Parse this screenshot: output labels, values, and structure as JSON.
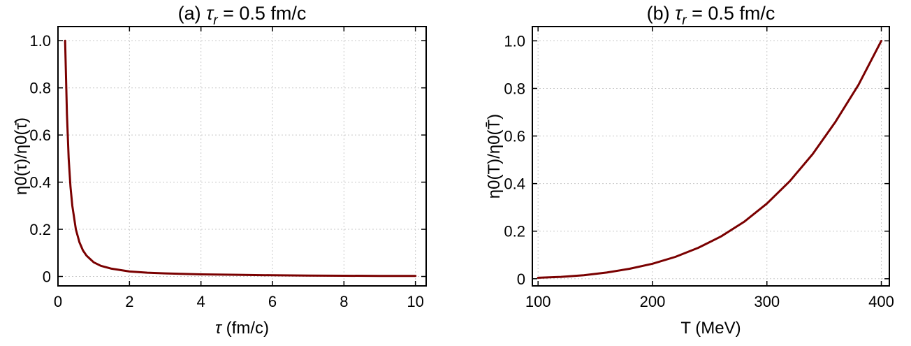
{
  "chart_data": [
    {
      "panel_id": "a",
      "type": "line",
      "title_prefix": "(a) ",
      "title_symbol": "τ",
      "title_subscript": "r",
      "title_suffix": " = 0.5 fm/c",
      "xlabel_symbol": "τ",
      "xlabel_suffix": " (fm/c)",
      "ylabel": "η0(τ)/η0(τ̄)",
      "xlim": [
        0,
        10.3
      ],
      "ylim": [
        -0.04,
        1.06
      ],
      "xticks": [
        0,
        2,
        4,
        6,
        8,
        10
      ],
      "xtick_labels": [
        "0",
        "2",
        "4",
        "6",
        "8",
        "10"
      ],
      "yticks": [
        0,
        0.2,
        0.4,
        0.6,
        0.8,
        1.0
      ],
      "ytick_labels": [
        "0",
        "0.2",
        "0.4",
        "0.6",
        "0.8",
        "1.0"
      ],
      "grid": true,
      "color": "#7a0000",
      "series": [
        {
          "x": [
            0.2,
            0.25,
            0.3,
            0.35,
            0.4,
            0.5,
            0.6,
            0.7,
            0.8,
            1.0,
            1.2,
            1.5,
            2.0,
            2.5,
            3.0,
            4.0,
            5.0,
            6.0,
            7.0,
            8.0,
            9.0,
            10.0
          ],
          "y": [
            1.0,
            0.69,
            0.5,
            0.38,
            0.3,
            0.2,
            0.145,
            0.11,
            0.088,
            0.06,
            0.045,
            0.033,
            0.021,
            0.016,
            0.013,
            0.009,
            0.007,
            0.005,
            0.004,
            0.003,
            0.0025,
            0.002
          ]
        }
      ]
    },
    {
      "panel_id": "b",
      "type": "line",
      "title_prefix": "(b) ",
      "title_symbol": "τ",
      "title_subscript": "r",
      "title_suffix": " = 0.5 fm/c",
      "xlabel": "T (MeV)",
      "ylabel": "η0(T)/η0(T̄)",
      "xlim": [
        95,
        407
      ],
      "ylim": [
        -0.03,
        1.06
      ],
      "xticks": [
        100,
        200,
        300,
        400
      ],
      "xtick_labels": [
        "100",
        "200",
        "300",
        "400"
      ],
      "yticks": [
        0,
        0.2,
        0.4,
        0.6,
        0.8,
        1.0
      ],
      "ytick_labels": [
        "0",
        "0.2",
        "0.4",
        "0.6",
        "0.8",
        "1.0"
      ],
      "grid": true,
      "color": "#7a0000",
      "series": [
        {
          "x": [
            100,
            120,
            140,
            160,
            180,
            200,
            220,
            240,
            260,
            280,
            300,
            320,
            340,
            360,
            380,
            400
          ],
          "y": [
            0.004,
            0.008,
            0.015,
            0.026,
            0.042,
            0.063,
            0.092,
            0.13,
            0.178,
            0.239,
            0.316,
            0.41,
            0.524,
            0.66,
            0.815,
            1.0
          ]
        }
      ]
    }
  ]
}
